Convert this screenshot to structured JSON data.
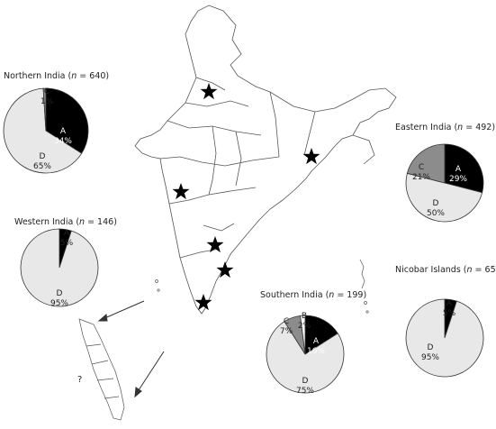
{
  "chart_data": [
    {
      "type": "pie",
      "region": "Northern India",
      "n": "640",
      "slices": [
        {
          "label": "A",
          "value": 34
        },
        {
          "label": "D",
          "value": 65
        },
        {
          "label": "C",
          "value": 1
        }
      ]
    },
    {
      "type": "pie",
      "region": "Eastern India",
      "n": "492",
      "slices": [
        {
          "label": "A",
          "value": 29
        },
        {
          "label": "D",
          "value": 50
        },
        {
          "label": "C",
          "value": 21
        }
      ]
    },
    {
      "type": "pie",
      "region": "Western India",
      "n": "146",
      "slices": [
        {
          "label": "A",
          "value": 5
        },
        {
          "label": "D",
          "value": 95
        }
      ]
    },
    {
      "type": "pie",
      "region": "Southern India",
      "n": "199",
      "slices": [
        {
          "label": "A",
          "value": 16
        },
        {
          "label": "D",
          "value": 75
        },
        {
          "label": "C",
          "value": 7
        },
        {
          "label": "B",
          "value": 2
        }
      ]
    },
    {
      "type": "pie",
      "region": "Nicobar Islands",
      "n": "65",
      "slices": [
        {
          "label": "A",
          "value": 5
        },
        {
          "label": "D",
          "value": 95
        }
      ]
    }
  ],
  "colors": {
    "A": "#000000",
    "B": "#ffffff",
    "C": "#8c8c8c",
    "D": "#e8e8e8"
  },
  "n_symbol": "n",
  "question_mark": "?"
}
